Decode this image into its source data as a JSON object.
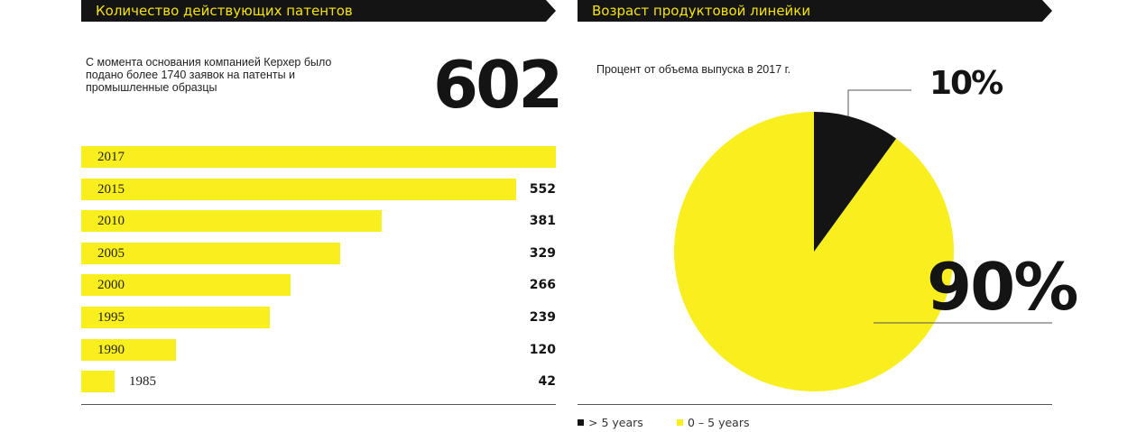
{
  "left_panel": {
    "title": "Количество действующих патентов",
    "description": "С момента основания компанией Керхер было подано более 1740 заявок на патенты и промышленные образцы",
    "highlight_value": "602"
  },
  "right_panel": {
    "title": "Возраст продуктовой линейки",
    "subtitle": "Процент от объема выпуска в 2017 г.",
    "small_label": "10%",
    "large_label": "90%",
    "legend": [
      {
        "label": "> 5 years",
        "color": "#141414"
      },
      {
        "label": "0 – 5 years",
        "color": "#f9ef1f"
      }
    ]
  },
  "chart_data": [
    {
      "type": "bar",
      "orientation": "horizontal",
      "categories": [
        "2017",
        "2015",
        "2010",
        "2005",
        "2000",
        "1995",
        "1990",
        "1985"
      ],
      "values": [
        602,
        552,
        381,
        329,
        266,
        239,
        120,
        42
      ],
      "value_labels": [
        "",
        "552",
        "381",
        "329",
        "266",
        "239",
        "120",
        "42"
      ],
      "xlim": [
        0,
        602
      ],
      "grid": false,
      "color": "#f9ef1f"
    },
    {
      "type": "pie",
      "labels": [
        "> 5 years",
        "0 – 5 years"
      ],
      "values": [
        10,
        90
      ],
      "colors": [
        "#141414",
        "#f9ef1f"
      ],
      "legend": "bottom-left"
    }
  ]
}
